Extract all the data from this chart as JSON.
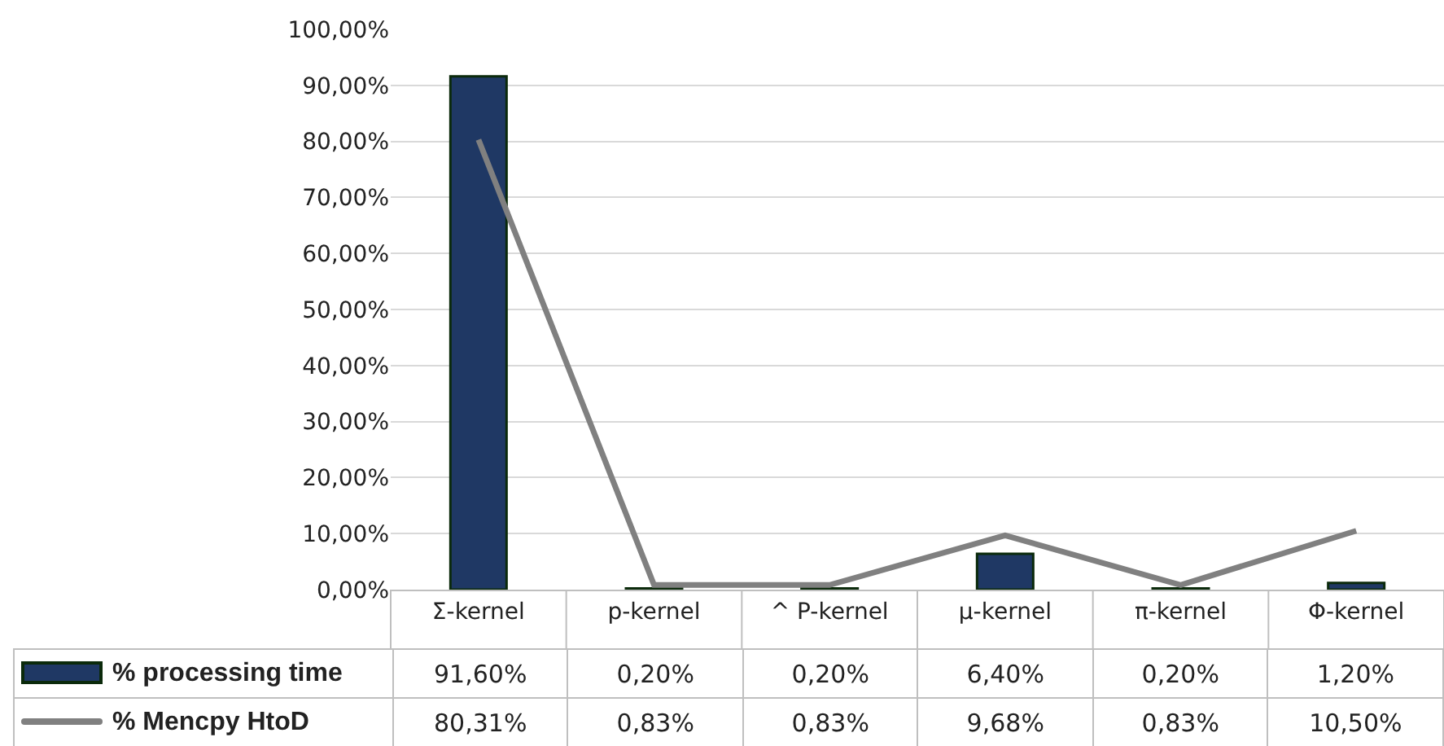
{
  "chart_data": {
    "type": "bar",
    "categories": [
      "Σ-kernel",
      "p-kernel",
      "^ P-kernel",
      "μ-kernel",
      "π-kernel",
      "Φ-kernel"
    ],
    "series": [
      {
        "name": "% processing time",
        "color": "#1f3864",
        "values": [
          91.6,
          0.2,
          0.2,
          6.4,
          0.2,
          1.2
        ],
        "value_labels": [
          "91,60%",
          "0,20%",
          "0,20%",
          "6,40%",
          "0,20%",
          "1,20%"
        ]
      },
      {
        "name": "% Mencpy HtoD",
        "type": "line",
        "color": "#808080",
        "values": [
          80.31,
          0.83,
          0.83,
          9.68,
          0.83,
          10.5
        ],
        "value_labels": [
          "80,31%",
          "0,83%",
          "0,83%",
          "9,68%",
          "0,83%",
          "10,50%"
        ]
      }
    ],
    "ylim": [
      0,
      100
    ],
    "yticks": [
      {
        "value": 0,
        "label": "0,00%"
      },
      {
        "value": 10,
        "label": "10,00%"
      },
      {
        "value": 20,
        "label": "20,00%"
      },
      {
        "value": 30,
        "label": "30,00%"
      },
      {
        "value": 40,
        "label": "40,00%"
      },
      {
        "value": 50,
        "label": "50,00%"
      },
      {
        "value": 60,
        "label": "60,00%"
      },
      {
        "value": 70,
        "label": "70,00%"
      },
      {
        "value": 80,
        "label": "80,00%"
      },
      {
        "value": 90,
        "label": "90,00%"
      },
      {
        "value": 100,
        "label": "100,00%"
      }
    ],
    "grid": "y",
    "legend": "bottom",
    "line_style": "solid"
  }
}
